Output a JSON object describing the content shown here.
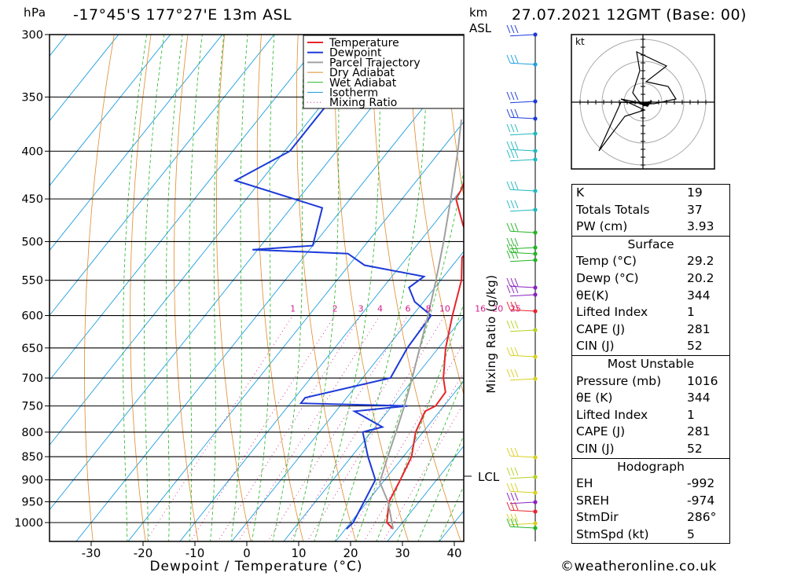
{
  "header": {
    "pressure_unit": "hPa",
    "location": "-17°45'S 177°27'E 13m ASL",
    "km_label": "km",
    "asl_label": "ASL",
    "datetime": "27.07.2021 12GMT (Base: 00)"
  },
  "chart_data": {
    "type": "line",
    "subtype": "skew-T log-P",
    "ylabel": "hPa",
    "xlabel": "Dewpoint / Temperature (°C)",
    "y_ticks": [
      300,
      350,
      400,
      450,
      500,
      550,
      600,
      650,
      700,
      750,
      800,
      850,
      900,
      950,
      1000
    ],
    "x_ticks": [
      -30,
      -20,
      -10,
      0,
      10,
      20,
      30,
      40
    ],
    "xlim": [
      -38,
      42
    ],
    "ylim": [
      1050,
      300
    ],
    "mixing_ratio_label": "Mixing Ratio (g/kg)",
    "mixing_ratio_values": [
      "1",
      "2",
      "3",
      "4",
      "6",
      "8",
      "10",
      "16",
      "20",
      "25"
    ],
    "lcl_label": "LCL",
    "lcl_pressure": 905,
    "legend": [
      "Temperature",
      "Dewpoint",
      "Parcel Trajectory",
      "Dry Adiabat",
      "Wet Adiabat",
      "Isotherm",
      "Mixing Ratio"
    ],
    "colors": {
      "temperature": "#e8242a",
      "dewpoint": "#1c3ad8",
      "parcel": "#a0a0a0",
      "dry_adiabat": "#e08a2c",
      "wet_adiabat": "#23b423",
      "isotherm": "#1e9ee0",
      "mixing_ratio": "#d0208a"
    },
    "series": [
      {
        "name": "Temperature",
        "points": [
          [
            1016,
            29.2
          ],
          [
            1000,
            27.0
          ],
          [
            950,
            24.2
          ],
          [
            900,
            23.0
          ],
          [
            850,
            21.6
          ],
          [
            800,
            18.6
          ],
          [
            760,
            17.2
          ],
          [
            750,
            18.4
          ],
          [
            725,
            18.2
          ],
          [
            700,
            15.6
          ],
          [
            650,
            11.4
          ],
          [
            600,
            7.7
          ],
          [
            550,
            4.0
          ],
          [
            520,
            0.6
          ],
          [
            505,
            0.7
          ],
          [
            480,
            -4.2
          ],
          [
            450,
            -9.6
          ],
          [
            440,
            -10.0
          ],
          [
            400,
            -13.2
          ],
          [
            350,
            -22.0
          ],
          [
            300,
            -32.8
          ]
        ]
      },
      {
        "name": "Dewpoint",
        "points": [
          [
            1016,
            20.2
          ],
          [
            1000,
            20.5
          ],
          [
            950,
            19.4
          ],
          [
            900,
            18.2
          ],
          [
            850,
            13.2
          ],
          [
            800,
            8.4
          ],
          [
            790,
            11.4
          ],
          [
            760,
            3.6
          ],
          [
            750,
            13.0
          ],
          [
            745,
            -8.0
          ],
          [
            735,
            -8.0
          ],
          [
            700,
            5.4
          ],
          [
            650,
            4.0
          ],
          [
            600,
            3.6
          ],
          [
            580,
            -1.7
          ],
          [
            560,
            -5.0
          ],
          [
            545,
            -3.8
          ],
          [
            530,
            -17.0
          ],
          [
            515,
            -22.0
          ],
          [
            510,
            -41.0
          ],
          [
            505,
            -30.0
          ],
          [
            460,
            -34.0
          ],
          [
            430,
            -55.0
          ],
          [
            400,
            -49.0
          ],
          [
            350,
            -49.0
          ],
          [
            300,
            -52.0
          ]
        ]
      },
      {
        "name": "Parcel Trajectory",
        "points": [
          [
            1016,
            29.2
          ],
          [
            950,
            24.0
          ],
          [
            905,
            19.4
          ],
          [
            850,
            17.0
          ],
          [
            800,
            14.8
          ],
          [
            750,
            12.4
          ],
          [
            700,
            9.6
          ],
          [
            650,
            6.4
          ],
          [
            600,
            3.0
          ],
          [
            550,
            -0.9
          ],
          [
            500,
            -5.4
          ],
          [
            450,
            -10.6
          ],
          [
            400,
            -16.6
          ],
          [
            370,
            -20.8
          ]
        ]
      }
    ]
  },
  "indices": {
    "k_label": "K",
    "k_value": "19",
    "tt_label": "Totals Totals",
    "tt_value": "37",
    "pw_label": "PW (cm)",
    "pw_value": "3.93"
  },
  "surface": {
    "title": "Surface",
    "temp_label": "Temp (°C)",
    "temp_value": "29.2",
    "dewp_label": "Dewp (°C)",
    "dewp_value": "20.2",
    "theta_label": "θE(K)",
    "theta_value": "344",
    "li_label": "Lifted Index",
    "li_value": "1",
    "cape_label": "CAPE (J)",
    "cape_value": "281",
    "cin_label": "CIN (J)",
    "cin_value": "52"
  },
  "most_unstable": {
    "title": "Most Unstable",
    "pressure_label": "Pressure (mb)",
    "pressure_value": "1016",
    "theta_label": "θE (K)",
    "theta_value": "344",
    "li_label": "Lifted Index",
    "li_value": "1",
    "cape_label": "CAPE (J)",
    "cape_value": "281",
    "cin_label": "CIN (J)",
    "cin_value": "52"
  },
  "hodograph": {
    "title": "Hodograph",
    "eh_label": "EH",
    "eh_value": "-992",
    "sreh_label": "SREH",
    "sreh_value": "-974",
    "stmdir_label": "StmDir",
    "stmdir_value": "286°",
    "stmspd_label": "StmSpd (kt)",
    "stmspd_value": "5",
    "unit_label": "kt"
  },
  "credit": "©weatheronline.co.uk"
}
